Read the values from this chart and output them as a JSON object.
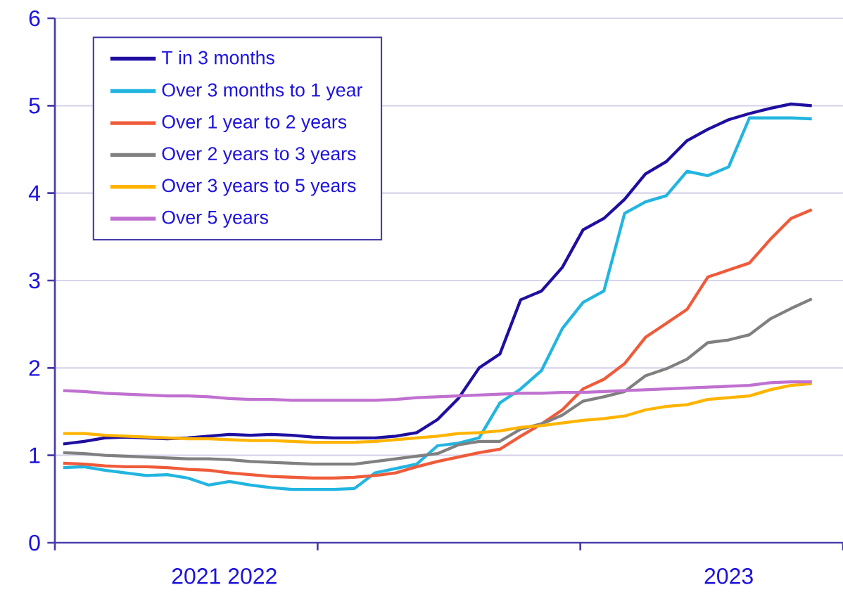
{
  "chart_data": {
    "type": "line",
    "categories": [
      null,
      null,
      null,
      null,
      null,
      null,
      null,
      null,
      null,
      null,
      null,
      null,
      null,
      null,
      null,
      null,
      null,
      null,
      null,
      null,
      null,
      null,
      null,
      null,
      null,
      null,
      null,
      null,
      null,
      null,
      null,
      null,
      null,
      null,
      null,
      null,
      null
    ],
    "annotations": [
      "2021 2022",
      "2023"
    ],
    "series": [
      {
        "name": "T in 3 months",
        "color": "#1f0fa0",
        "values": [
          1.13,
          1.16,
          1.2,
          1.21,
          1.2,
          1.19,
          1.2,
          1.22,
          1.24,
          1.23,
          1.24,
          1.23,
          1.21,
          1.2,
          1.2,
          1.2,
          1.22,
          1.26,
          1.41,
          1.65,
          2.0,
          2.16,
          2.78,
          2.88,
          3.15,
          3.58,
          3.71,
          3.93,
          4.22,
          4.36,
          4.6,
          4.73,
          4.84,
          4.91,
          4.97,
          5.02,
          5.0
        ]
      },
      {
        "name": "Over 3 months to 1 year",
        "color": "#22b5e0",
        "values": [
          0.86,
          0.87,
          0.83,
          0.8,
          0.77,
          0.78,
          0.74,
          0.66,
          0.7,
          0.66,
          0.63,
          0.61,
          0.61,
          0.61,
          0.62,
          0.8,
          0.85,
          0.9,
          1.11,
          1.14,
          1.2,
          1.6,
          1.76,
          1.97,
          2.45,
          2.75,
          2.88,
          3.77,
          3.9,
          3.97,
          4.25,
          4.2,
          4.3,
          4.86,
          4.86,
          4.86,
          4.85
        ]
      },
      {
        "name": "Over 1 year to 2 years",
        "color": "#ef5b3a",
        "values": [
          0.91,
          0.9,
          0.88,
          0.87,
          0.87,
          0.86,
          0.84,
          0.83,
          0.8,
          0.78,
          0.76,
          0.75,
          0.74,
          0.74,
          0.75,
          0.77,
          0.8,
          0.87,
          0.93,
          0.98,
          1.03,
          1.07,
          1.22,
          1.36,
          1.52,
          1.76,
          1.87,
          2.05,
          2.35,
          2.51,
          2.67,
          3.04,
          3.12,
          3.2,
          3.47,
          3.71,
          3.81
        ]
      },
      {
        "name": "Over 2 years to 3 years",
        "color": "#808080",
        "values": [
          1.03,
          1.02,
          1.0,
          0.99,
          0.98,
          0.97,
          0.96,
          0.96,
          0.95,
          0.93,
          0.92,
          0.91,
          0.9,
          0.9,
          0.9,
          0.93,
          0.96,
          0.99,
          1.02,
          1.12,
          1.16,
          1.16,
          1.3,
          1.36,
          1.46,
          1.62,
          1.67,
          1.73,
          1.91,
          1.99,
          2.1,
          2.29,
          2.32,
          2.38,
          2.56,
          2.68,
          2.79
        ]
      },
      {
        "name": "Over 3 years to 5 years",
        "color": "#ffb400",
        "values": [
          1.25,
          1.25,
          1.23,
          1.22,
          1.21,
          1.2,
          1.19,
          1.19,
          1.18,
          1.17,
          1.17,
          1.16,
          1.15,
          1.15,
          1.15,
          1.16,
          1.18,
          1.2,
          1.22,
          1.25,
          1.26,
          1.28,
          1.32,
          1.34,
          1.37,
          1.4,
          1.42,
          1.45,
          1.52,
          1.56,
          1.58,
          1.64,
          1.66,
          1.68,
          1.75,
          1.8,
          1.82
        ]
      },
      {
        "name": "Over 5 years",
        "color": "#c070d0",
        "values": [
          1.74,
          1.73,
          1.71,
          1.7,
          1.69,
          1.68,
          1.68,
          1.67,
          1.65,
          1.64,
          1.64,
          1.63,
          1.63,
          1.63,
          1.63,
          1.63,
          1.64,
          1.66,
          1.67,
          1.68,
          1.69,
          1.7,
          1.71,
          1.71,
          1.72,
          1.72,
          1.73,
          1.74,
          1.75,
          1.76,
          1.77,
          1.78,
          1.79,
          1.8,
          1.83,
          1.84,
          1.84
        ]
      }
    ],
    "ylim": [
      0,
      6
    ],
    "yticks": [
      0,
      1,
      2,
      3,
      4,
      5,
      6
    ],
    "grid": "y",
    "legend": "top left",
    "marker": "none",
    "line_style": "solid"
  }
}
